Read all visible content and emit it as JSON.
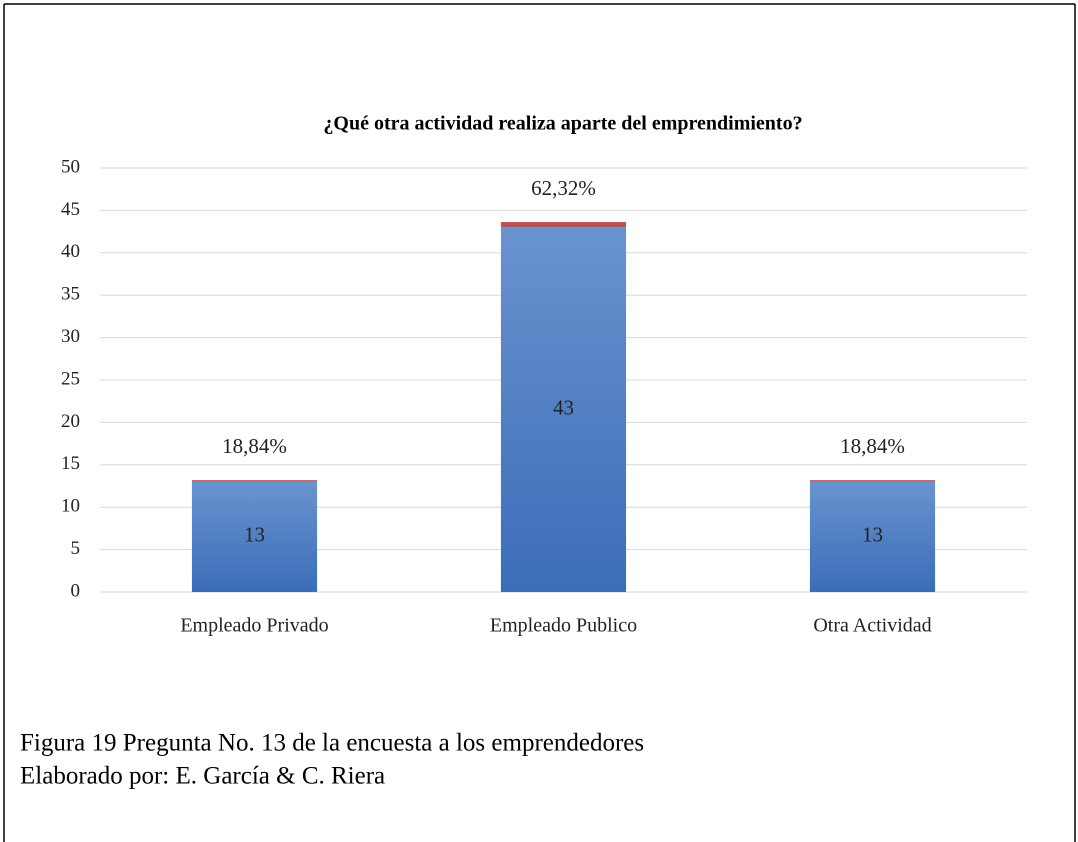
{
  "chart_data": {
    "type": "bar",
    "stacked": true,
    "title": "¿Qué otra actividad realiza aparte del emprendimiento?",
    "categories": [
      "Empleado Privado",
      "Empleado Publico",
      "Otra Actividad"
    ],
    "series": [
      {
        "color": "#4472c4",
        "values": [
          13,
          43,
          13
        ]
      },
      {
        "color": "#c0504d",
        "values": [
          0.1884,
          0.6232,
          0.1884
        ],
        "value_labels": [
          "18,84%",
          "62,32%",
          "18,84%"
        ]
      }
    ],
    "ylim": [
      0,
      50
    ],
    "yticks": [
      0,
      5,
      10,
      15,
      20,
      25,
      30,
      35,
      40,
      45,
      50
    ],
    "grid": true
  },
  "caption": [
    "Figura 19 Pregunta No. 13 de la encuesta a los emprendedores",
    "Elaborado por: E. García  & C. Riera"
  ]
}
